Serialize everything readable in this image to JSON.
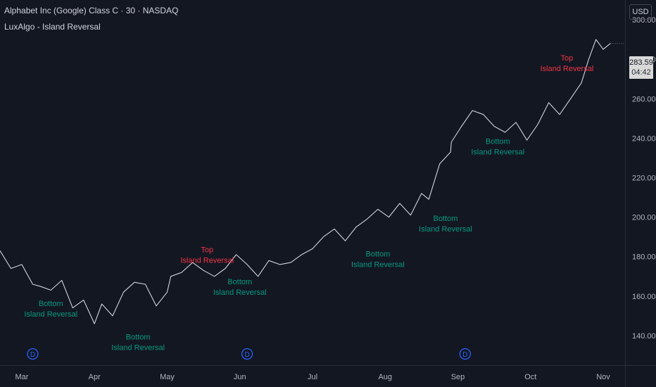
{
  "header": {
    "title": "Alphabet Inc (Google) Class C · 30 · NASDAQ",
    "indicator": "LuxAlgo - Island Reversal"
  },
  "price_scale": {
    "currency": "USD",
    "last_price": "283.59",
    "countdown": "04:42"
  },
  "colors": {
    "background": "#131722",
    "price_line": "#d1d4dc",
    "bottom_label": "#089981",
    "top_label": "#f23645",
    "dividend_marker": "#2962ff",
    "axis_text": "#b2b5be"
  },
  "chart_data": {
    "type": "line",
    "ylim": [
      125,
      310
    ],
    "y_ticks": [
      140,
      160,
      180,
      200,
      220,
      240,
      260,
      280,
      300
    ],
    "y_tick_labels": [
      "140.00",
      "160.00",
      "180.00",
      "200.00",
      "220.00",
      "240.00",
      "260.00",
      "280.00",
      "300.00"
    ],
    "x_labels": [
      "Mar",
      "Apr",
      "May",
      "Jun",
      "Jul",
      "Aug",
      "Sep",
      "Oct",
      "Nov"
    ],
    "x_label_positions": [
      0.3,
      1.3,
      2.3,
      3.3,
      4.3,
      5.3,
      6.3,
      7.3,
      8.3
    ],
    "series": [
      {
        "x": [
          0.0,
          0.15,
          0.3,
          0.45,
          0.55,
          0.7,
          0.85,
          1.0,
          1.15,
          1.3,
          1.4,
          1.55,
          1.7,
          1.85,
          2.0,
          2.15,
          2.3,
          2.35,
          2.5,
          2.65,
          2.8,
          2.95,
          3.1,
          3.25,
          3.4,
          3.55,
          3.7,
          3.85,
          4.0,
          4.15,
          4.3,
          4.45,
          4.6,
          4.75,
          4.9,
          5.05,
          5.2,
          5.35,
          5.5,
          5.65,
          5.8,
          5.9,
          6.05,
          6.2,
          6.21,
          6.35,
          6.5,
          6.65,
          6.8,
          6.95,
          7.1,
          7.25,
          7.4,
          7.55,
          7.7,
          7.85,
          8.0,
          8.1,
          8.2,
          8.3,
          8.4
        ],
        "values": [
          183,
          174,
          176,
          166,
          165,
          163,
          168,
          154,
          158,
          146,
          156,
          150,
          162,
          167,
          166,
          155,
          162,
          170,
          172,
          177,
          173,
          170,
          174,
          181,
          176,
          170,
          178,
          176,
          177,
          181,
          184,
          190,
          194,
          188,
          195,
          199,
          204,
          200,
          207,
          201,
          212,
          209,
          227,
          233,
          238,
          246,
          254,
          252,
          246,
          243,
          248,
          239,
          247,
          258,
          252,
          260,
          268,
          280,
          290,
          285,
          288
        ]
      }
    ],
    "annotations": [
      {
        "kind": "bottom",
        "x": 0.7,
        "value": 165,
        "line1": "Bottom",
        "line2": "Island Reversal"
      },
      {
        "kind": "bottom",
        "x": 1.9,
        "value": 148,
        "line1": "Bottom",
        "line2": "Island Reversal"
      },
      {
        "kind": "top",
        "x": 2.85,
        "value": 168,
        "line1": "Top",
        "line2": "Island Reversal"
      },
      {
        "kind": "bottom",
        "x": 3.3,
        "value": 176,
        "line1": "Bottom",
        "line2": "Island Reversal"
      },
      {
        "kind": "bottom",
        "x": 5.2,
        "value": 190,
        "line1": "Bottom",
        "line2": "Island Reversal"
      },
      {
        "kind": "bottom",
        "x": 6.13,
        "value": 208,
        "line1": "Bottom",
        "line2": "Island Reversal"
      },
      {
        "kind": "bottom",
        "x": 6.85,
        "value": 247,
        "line1": "Bottom",
        "line2": "Island Reversal"
      },
      {
        "kind": "top",
        "x": 7.8,
        "value": 265,
        "line1": "Top",
        "line2": "Island Reversal"
      }
    ],
    "dividends": [
      {
        "x": 0.45,
        "label": "D"
      },
      {
        "x": 3.4,
        "label": "D"
      },
      {
        "x": 6.4,
        "label": "D"
      }
    ]
  }
}
